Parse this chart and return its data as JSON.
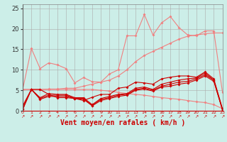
{
  "bg_color": "#cceee8",
  "grid_color": "#aaaaaa",
  "xlabel": "Vent moyen/en rafales ( km/h )",
  "xlabel_color": "#cc0000",
  "xlabel_fontsize": 7,
  "yticks": [
    0,
    5,
    10,
    15,
    20,
    25
  ],
  "xlim": [
    0,
    23
  ],
  "ylim": [
    0,
    26
  ],
  "x": [
    0,
    1,
    2,
    3,
    4,
    5,
    6,
    7,
    8,
    9,
    10,
    11,
    12,
    13,
    14,
    15,
    16,
    17,
    18,
    19,
    20,
    21,
    22,
    23
  ],
  "line_pink1": [
    5.2,
    15.2,
    10.3,
    11.7,
    11.2,
    10.3,
    6.8,
    8.1,
    7.1,
    7.0,
    9.0,
    10.0,
    18.3,
    18.3,
    23.5,
    18.5,
    21.5,
    23.0,
    20.3,
    18.5,
    18.3,
    19.5,
    19.5,
    4.5
  ],
  "line_pink2": [
    5.2,
    5.2,
    5.2,
    5.3,
    5.3,
    5.5,
    5.5,
    6.0,
    6.5,
    7.0,
    7.5,
    8.5,
    10.0,
    12.0,
    13.5,
    14.5,
    15.5,
    16.5,
    17.5,
    18.2,
    18.5,
    18.8,
    19.0,
    19.0
  ],
  "line_pink3": [
    5.2,
    5.2,
    5.2,
    5.2,
    5.2,
    5.2,
    5.2,
    5.2,
    5.2,
    5.0,
    4.8,
    4.5,
    4.2,
    4.0,
    3.8,
    3.5,
    3.2,
    3.0,
    2.8,
    2.5,
    2.2,
    2.0,
    1.5,
    0.5
  ],
  "line_red1": [
    1.2,
    5.2,
    3.2,
    4.2,
    4.0,
    4.0,
    3.2,
    3.2,
    1.5,
    3.0,
    3.5,
    4.0,
    4.2,
    5.5,
    5.8,
    5.2,
    6.5,
    7.0,
    7.5,
    7.8,
    8.0,
    9.2,
    7.5,
    0.3
  ],
  "line_red2": [
    1.0,
    5.2,
    3.0,
    3.8,
    3.8,
    3.8,
    3.0,
    3.0,
    1.3,
    2.8,
    3.2,
    3.8,
    4.0,
    5.2,
    5.5,
    5.0,
    6.0,
    6.5,
    7.0,
    7.2,
    7.8,
    8.8,
    7.5,
    0.2
  ],
  "line_red3": [
    0.5,
    5.2,
    2.8,
    3.5,
    3.5,
    3.5,
    3.0,
    2.8,
    1.2,
    2.5,
    3.0,
    3.5,
    3.8,
    5.0,
    5.3,
    4.8,
    5.8,
    6.0,
    6.5,
    6.8,
    7.5,
    8.5,
    7.2,
    0.2
  ],
  "line_red4": [
    0.3,
    5.2,
    5.2,
    4.0,
    3.2,
    3.2,
    3.0,
    2.5,
    3.3,
    4.0,
    4.0,
    5.5,
    5.8,
    7.0,
    6.8,
    6.5,
    7.8,
    8.2,
    8.5,
    8.5,
    8.2,
    9.5,
    7.8,
    0.5
  ],
  "pink_color": "#f08080",
  "red_color": "#cc0000"
}
